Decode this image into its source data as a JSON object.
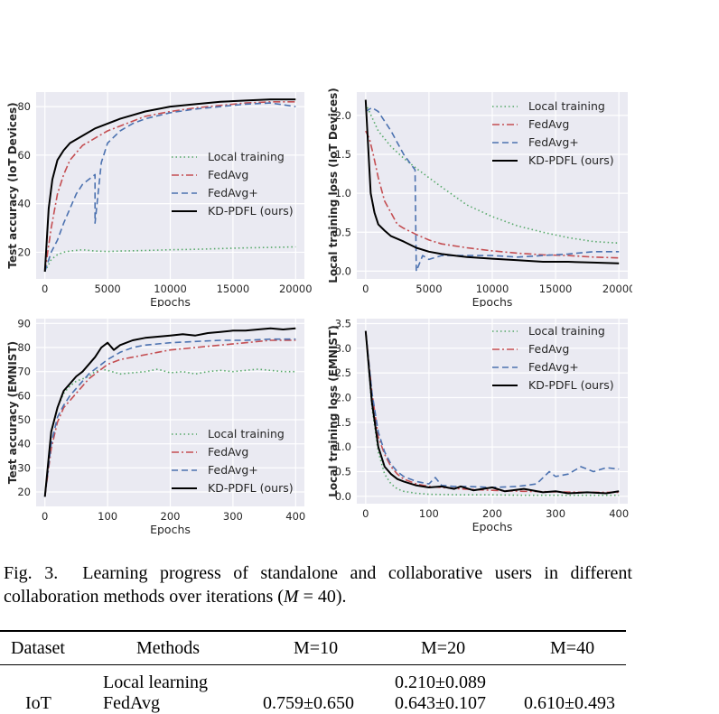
{
  "chart_data": [
    {
      "type": "line",
      "xlabel": "Epochs",
      "ylabel": "Test accuracy (IoT Devices)",
      "xlim": [
        -700,
        20700
      ],
      "ylim": [
        9,
        86
      ],
      "xticks": [
        0,
        5000,
        10000,
        15000,
        20000
      ],
      "yticks": [
        20,
        40,
        60,
        80
      ],
      "grid": true,
      "legend": "center-right",
      "series": [
        {
          "name": "Local training",
          "color": "#55a868",
          "style": "dotted",
          "x": [
            0,
            500,
            1000,
            1500,
            2000,
            3000,
            4000,
            5000,
            6000,
            8000,
            10000,
            12000,
            14000,
            16000,
            18000,
            20000
          ],
          "y": [
            12,
            17,
            19,
            20,
            20.5,
            21,
            20.5,
            20.3,
            20.5,
            20.7,
            21,
            21.2,
            21.5,
            21.8,
            22,
            22.2
          ]
        },
        {
          "name": "FedAvg",
          "color": "#c44e52",
          "style": "dashdot",
          "x": [
            0,
            500,
            1000,
            1500,
            2000,
            3000,
            4000,
            5000,
            6000,
            8000,
            10000,
            12000,
            14000,
            16000,
            18000,
            20000
          ],
          "y": [
            12,
            30,
            44,
            52,
            58,
            64,
            67,
            70,
            72,
            76,
            78,
            79.5,
            80.5,
            81.5,
            82,
            82
          ]
        },
        {
          "name": "FedAvg+",
          "color": "#4c72b0",
          "style": "dashed",
          "x": [
            0,
            500,
            1000,
            1500,
            2000,
            2500,
            3000,
            3500,
            4000,
            4001,
            4500,
            5000,
            6000,
            7000,
            8000,
            10000,
            12000,
            14000,
            16000,
            18000,
            20000
          ],
          "y": [
            12,
            20,
            25,
            32,
            38,
            44,
            48,
            50,
            52,
            32,
            57,
            65,
            70,
            73,
            75,
            77.5,
            79,
            80,
            81,
            81.5,
            80
          ]
        },
        {
          "name": "KD-PDFL (ours)",
          "color": "#000000",
          "style": "solid",
          "x": [
            0,
            300,
            600,
            1000,
            1500,
            2000,
            3000,
            4000,
            5000,
            6000,
            8000,
            10000,
            12000,
            14000,
            16000,
            18000,
            20000
          ],
          "y": [
            12,
            38,
            50,
            58,
            62,
            65,
            68,
            71,
            73,
            75,
            78,
            80,
            81,
            82,
            82.5,
            83,
            83
          ]
        }
      ]
    },
    {
      "type": "line",
      "xlabel": "Epochs",
      "ylabel": "Local training loss (IoT Devices)",
      "xlim": [
        -700,
        20700
      ],
      "ylim": [
        -0.1,
        2.3
      ],
      "xticks": [
        0,
        5000,
        10000,
        15000,
        20000
      ],
      "yticks": [
        0.0,
        0.5,
        1.0,
        1.5,
        2.0
      ],
      "grid": true,
      "legend": "top-right",
      "series": [
        {
          "name": "Local training",
          "color": "#55a868",
          "style": "dotted",
          "x": [
            0,
            1000,
            2000,
            3000,
            4000,
            5000,
            6000,
            8000,
            10000,
            12000,
            14000,
            16000,
            18000,
            20000
          ],
          "y": [
            2.15,
            1.8,
            1.6,
            1.45,
            1.32,
            1.2,
            1.08,
            0.85,
            0.7,
            0.58,
            0.5,
            0.43,
            0.38,
            0.36
          ]
        },
        {
          "name": "FedAvg",
          "color": "#c44e52",
          "style": "dashdot",
          "x": [
            0,
            300,
            600,
            1000,
            1500,
            2000,
            2500,
            3000,
            4000,
            5000,
            6000,
            8000,
            10000,
            12000,
            14000,
            16000,
            18000,
            20000
          ],
          "y": [
            1.8,
            1.7,
            1.5,
            1.2,
            0.9,
            0.75,
            0.6,
            0.55,
            0.47,
            0.4,
            0.35,
            0.3,
            0.26,
            0.23,
            0.21,
            0.2,
            0.18,
            0.17
          ]
        },
        {
          "name": "FedAvg+",
          "color": "#4c72b0",
          "style": "dashed",
          "x": [
            0,
            500,
            1000,
            2000,
            3000,
            3900,
            4000,
            4500,
            5000,
            6000,
            8000,
            10000,
            12000,
            14000,
            16000,
            18000,
            20000
          ],
          "y": [
            2.05,
            2.1,
            2.05,
            1.8,
            1.5,
            1.3,
            0.0,
            0.2,
            0.15,
            0.2,
            0.2,
            0.2,
            0.18,
            0.2,
            0.22,
            0.25,
            0.25
          ]
        },
        {
          "name": "KD-PDFL (ours)",
          "color": "#000000",
          "style": "solid",
          "x": [
            0,
            200,
            400,
            700,
            1000,
            1500,
            2000,
            3000,
            4000,
            5000,
            6000,
            8000,
            10000,
            12000,
            14000,
            16000,
            18000,
            20000
          ],
          "y": [
            2.2,
            1.6,
            1.0,
            0.75,
            0.6,
            0.52,
            0.45,
            0.38,
            0.3,
            0.25,
            0.22,
            0.18,
            0.16,
            0.14,
            0.12,
            0.12,
            0.11,
            0.1
          ]
        }
      ]
    },
    {
      "type": "line",
      "xlabel": "Epochs",
      "ylabel": "Test accuracy (EMNIST)",
      "xlim": [
        -14,
        414
      ],
      "ylim": [
        14,
        92
      ],
      "xticks": [
        0,
        100,
        200,
        300,
        400
      ],
      "yticks": [
        20,
        30,
        40,
        50,
        60,
        70,
        80,
        90
      ],
      "grid": true,
      "legend": "bottom-right",
      "series": [
        {
          "name": "Local training",
          "color": "#55a868",
          "style": "dotted",
          "x": [
            0,
            10,
            20,
            30,
            40,
            50,
            60,
            70,
            80,
            90,
            100,
            120,
            140,
            160,
            180,
            200,
            220,
            240,
            260,
            280,
            300,
            320,
            340,
            360,
            380,
            400
          ],
          "y": [
            18,
            45,
            55,
            61,
            64,
            66,
            67,
            68,
            70,
            71,
            70.5,
            69,
            69.5,
            70,
            71,
            69.5,
            70,
            69,
            70,
            70.5,
            70,
            70.5,
            71,
            70.5,
            70,
            70
          ]
        },
        {
          "name": "FedAvg",
          "color": "#c44e52",
          "style": "dashdot",
          "x": [
            0,
            10,
            20,
            30,
            40,
            50,
            60,
            70,
            80,
            90,
            100,
            120,
            140,
            160,
            180,
            200,
            240,
            280,
            320,
            360,
            400
          ],
          "y": [
            18,
            38,
            49,
            55,
            58,
            61,
            64,
            67,
            69,
            71,
            73,
            75,
            76,
            77,
            78,
            79,
            80,
            81,
            82,
            83,
            83
          ]
        },
        {
          "name": "FedAvg+",
          "color": "#4c72b0",
          "style": "dashed",
          "x": [
            0,
            10,
            20,
            30,
            40,
            50,
            60,
            70,
            80,
            90,
            100,
            120,
            140,
            160,
            180,
            200,
            240,
            280,
            320,
            360,
            400
          ],
          "y": [
            18,
            40,
            51,
            56,
            60,
            63,
            66,
            69,
            71,
            73,
            75,
            78,
            80,
            81,
            81.5,
            82,
            82.5,
            83,
            83,
            83.5,
            83.5
          ]
        },
        {
          "name": "KD-PDFL (ours)",
          "color": "#000000",
          "style": "solid",
          "x": [
            0,
            10,
            20,
            30,
            40,
            50,
            60,
            70,
            80,
            90,
            100,
            110,
            120,
            140,
            160,
            180,
            200,
            220,
            240,
            260,
            280,
            300,
            320,
            340,
            360,
            380,
            400
          ],
          "y": [
            18,
            45,
            55,
            62,
            65,
            68,
            70,
            73,
            76,
            80,
            82,
            79,
            81,
            83,
            84,
            84.5,
            85,
            85.5,
            85,
            86,
            86.5,
            87,
            87,
            87.5,
            88,
            87.5,
            88
          ]
        }
      ]
    },
    {
      "type": "line",
      "xlabel": "Epochs",
      "ylabel": "Local training loss (EMNIST)",
      "xlim": [
        -14,
        414
      ],
      "ylim": [
        -0.15,
        3.6
      ],
      "xticks": [
        0,
        100,
        200,
        300,
        400
      ],
      "yticks": [
        0.0,
        0.5,
        1.0,
        1.5,
        2.0,
        2.5,
        3.0,
        3.5
      ],
      "grid": true,
      "legend": "top-right",
      "series": [
        {
          "name": "Local training",
          "color": "#55a868",
          "style": "dotted",
          "x": [
            0,
            10,
            20,
            30,
            40,
            50,
            60,
            80,
            100,
            150,
            200,
            250,
            300,
            350,
            400
          ],
          "y": [
            3.35,
            1.8,
            0.9,
            0.45,
            0.25,
            0.15,
            0.1,
            0.06,
            0.04,
            0.03,
            0.03,
            0.02,
            0.02,
            0.02,
            0.02
          ]
        },
        {
          "name": "FedAvg",
          "color": "#c44e52",
          "style": "dashdot",
          "x": [
            0,
            10,
            20,
            30,
            40,
            50,
            60,
            80,
            100,
            120,
            150,
            200,
            250,
            300,
            350,
            400
          ],
          "y": [
            3.35,
            2.1,
            1.2,
            0.85,
            0.6,
            0.45,
            0.35,
            0.25,
            0.2,
            0.18,
            0.15,
            0.12,
            0.1,
            0.09,
            0.08,
            0.08
          ]
        },
        {
          "name": "FedAvg+",
          "color": "#4c72b0",
          "style": "dashed",
          "x": [
            0,
            10,
            20,
            30,
            40,
            50,
            60,
            80,
            100,
            110,
            120,
            140,
            160,
            200,
            240,
            270,
            290,
            300,
            320,
            340,
            360,
            380,
            400
          ],
          "y": [
            3.35,
            2.1,
            1.3,
            0.9,
            0.65,
            0.5,
            0.4,
            0.3,
            0.25,
            0.38,
            0.22,
            0.2,
            0.2,
            0.18,
            0.2,
            0.25,
            0.5,
            0.4,
            0.45,
            0.6,
            0.5,
            0.58,
            0.55
          ]
        },
        {
          "name": "KD-PDFL (ours)",
          "color": "#000000",
          "style": "solid",
          "x": [
            0,
            10,
            20,
            30,
            40,
            50,
            60,
            80,
            100,
            120,
            140,
            150,
            170,
            200,
            220,
            250,
            280,
            300,
            320,
            350,
            380,
            400
          ],
          "y": [
            3.35,
            1.9,
            1.0,
            0.6,
            0.45,
            0.35,
            0.3,
            0.22,
            0.18,
            0.2,
            0.15,
            0.2,
            0.12,
            0.18,
            0.1,
            0.15,
            0.08,
            0.1,
            0.06,
            0.08,
            0.06,
            0.1
          ]
        }
      ]
    }
  ],
  "caption": {
    "label": "Fig. 3.",
    "text_before": "Learning progress of standalone and collaborative users in different collaboration methods over iterations (",
    "var": "M",
    "op": " = ",
    "val": "40",
    "text_after": ")."
  },
  "table": {
    "headers": [
      "Dataset",
      "Methods",
      "M=10",
      "M=20",
      "M=40"
    ],
    "rows": [
      {
        "dataset": "",
        "method": "Local learning",
        "m10": "",
        "m20": "0.210±0.089",
        "m40": ""
      },
      {
        "dataset": "IoT",
        "method": "FedAvg",
        "m10": "0.759±0.650",
        "m20": "0.643±0.107",
        "m40": "0.610±0.493"
      }
    ]
  }
}
